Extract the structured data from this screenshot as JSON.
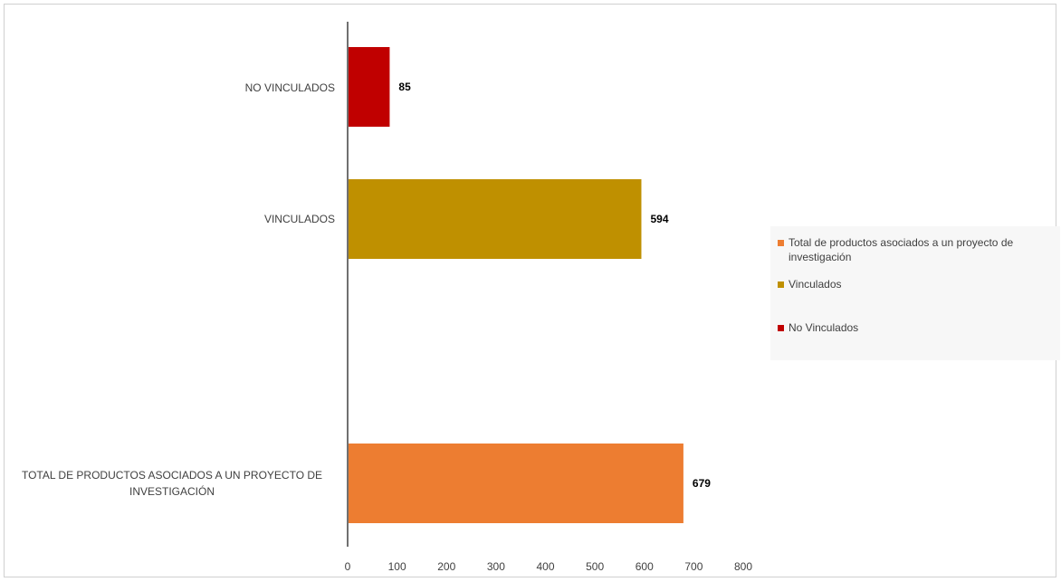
{
  "chart_data": {
    "type": "bar",
    "orientation": "horizontal",
    "title": "",
    "xlabel": "",
    "ylabel": "",
    "xlim": [
      0,
      800
    ],
    "x_ticks": [
      0,
      100,
      200,
      300,
      400,
      500,
      600,
      700,
      800
    ],
    "grid": false,
    "legend_position": "right",
    "bars": [
      {
        "category": "NO VINCULADOS",
        "value": 85,
        "color": "#c00000"
      },
      {
        "category": "VINCULADOS",
        "value": 594,
        "color": "#bf9000"
      },
      {
        "category": "TOTAL DE PRODUCTOS ASOCIADOS A UN PROYECTO DE INVESTIGACIÓN",
        "value": 679,
        "color": "#ed7d31"
      }
    ],
    "legend": [
      {
        "label": "Total de productos asociados a un proyecto de investigación",
        "color": "#ed7d31"
      },
      {
        "label": "Vinculados",
        "color": "#bf9000"
      },
      {
        "label": "No Vinculados",
        "color": "#c00000"
      }
    ]
  }
}
